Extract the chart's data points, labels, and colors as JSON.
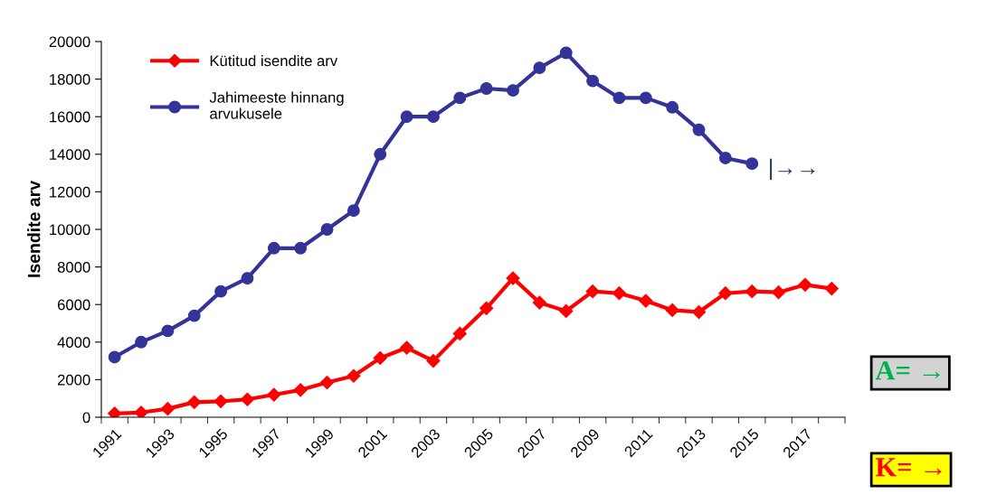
{
  "chart_data": {
    "type": "line",
    "ylabel": "Isendite arv",
    "categories": [
      "1991",
      null,
      "1993",
      null,
      "1995",
      null,
      "1997",
      null,
      "1999",
      null,
      "2001",
      null,
      "2003",
      null,
      "2005",
      null,
      "2007",
      null,
      "2009",
      null,
      "2011",
      null,
      "2013",
      null,
      "2015",
      null,
      "2017",
      null
    ],
    "series": [
      {
        "name": "Kütitud isendite arv",
        "color": "#ff0000",
        "marker": "diamond",
        "values": [
          200,
          250,
          450,
          800,
          850,
          950,
          1200,
          1450,
          1850,
          2200,
          3150,
          3700,
          3000,
          4450,
          5800,
          7400,
          6100,
          5650,
          6700,
          6600,
          6200,
          5700,
          5600,
          6600,
          6700,
          6650,
          7050,
          6850
        ]
      },
      {
        "name": "Jahimeeste hinnang\narvukusele",
        "color": "#333399",
        "marker": "circle",
        "values": [
          3200,
          4000,
          4600,
          5400,
          6700,
          7400,
          9000,
          9000,
          10000,
          11000,
          14000,
          16000,
          16000,
          17000,
          17500,
          17400,
          18600,
          19400,
          17900,
          17000,
          17000,
          16500,
          15300,
          13800,
          13500,
          null,
          null,
          null
        ]
      }
    ],
    "ylim": [
      0,
      20000
    ],
    "yticks": [
      0,
      2000,
      4000,
      6000,
      8000,
      10000,
      12000,
      14000,
      16000,
      18000,
      20000
    ],
    "grid": false,
    "legend": "top left",
    "line_style": "solid",
    "annotations": [
      "|→→",
      "A= →",
      "K= →"
    ]
  }
}
